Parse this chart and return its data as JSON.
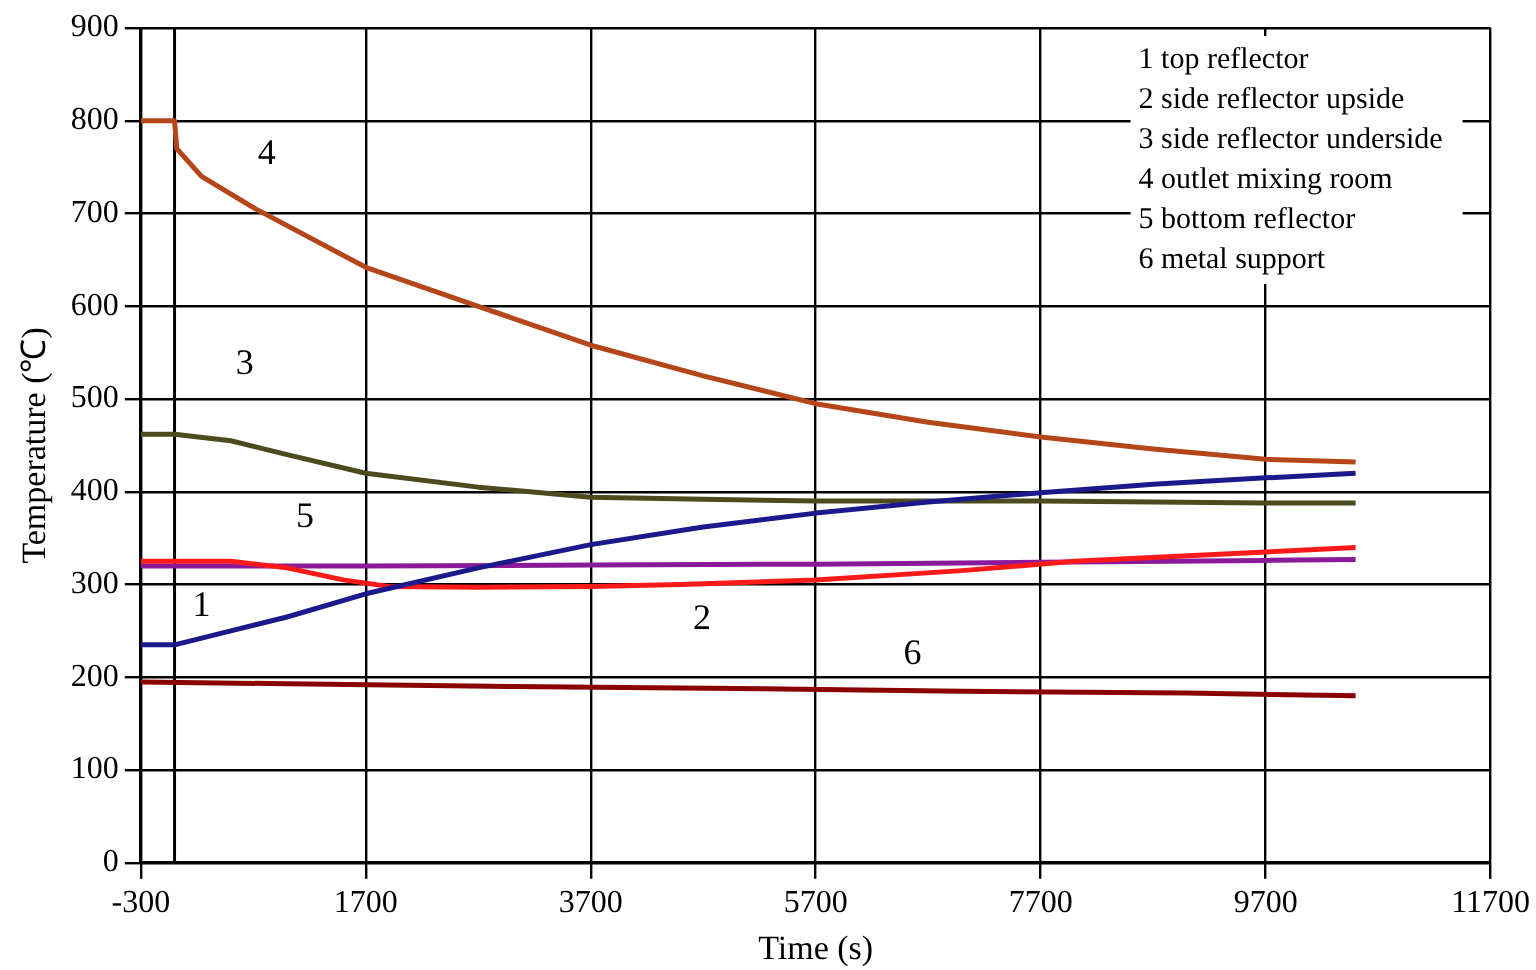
{
  "chart_data": {
    "type": "line",
    "xlabel": "Time (s)",
    "ylabel": "Temperature (℃)",
    "xlim": [
      -300,
      11700
    ],
    "xticks": [
      -300,
      1700,
      3700,
      5700,
      7700,
      9700,
      11700
    ],
    "ylim": [
      0,
      900
    ],
    "yticks": [
      0,
      100,
      200,
      300,
      400,
      500,
      600,
      700,
      800,
      900
    ],
    "grid": true,
    "marker": "none",
    "line_style": "solid",
    "series": [
      {
        "name": "1",
        "color": "#1a1a8c",
        "x": [
          -300,
          0,
          500,
          1000,
          1700,
          2700,
          3700,
          4700,
          5700,
          6700,
          7700,
          8700,
          9700,
          10500
        ],
        "values": [
          235,
          235,
          250,
          265,
          290,
          318,
          343,
          362,
          377,
          389,
          399,
          408,
          415,
          420
        ]
      },
      {
        "name": "2",
        "color": "#ff1a1a",
        "x": [
          -300,
          500,
          1000,
          1500,
          1900,
          2700,
          3700,
          4500,
          5700,
          7000,
          8000,
          9700,
          10500
        ],
        "values": [
          325,
          325,
          318,
          305,
          298,
          297,
          298,
          300,
          305,
          315,
          325,
          335,
          340
        ]
      },
      {
        "name": "3",
        "color": "#4b4b1e",
        "x": [
          -300,
          0,
          500,
          1000,
          1700,
          2700,
          3700,
          4700,
          5700,
          7700,
          9700,
          10500
        ],
        "values": [
          462,
          462,
          455,
          440,
          420,
          405,
          394,
          392,
          390,
          390,
          388,
          388
        ]
      },
      {
        "name": "4",
        "color": "#b5461a",
        "x": [
          -300,
          0,
          20,
          240,
          720,
          1700,
          2700,
          3700,
          4700,
          5700,
          6700,
          7700,
          8700,
          9700,
          10500
        ],
        "values": [
          800,
          800,
          770,
          740,
          705,
          642,
          600,
          558,
          525,
          495,
          475,
          459,
          446,
          435,
          432
        ]
      },
      {
        "name": "5",
        "color": "#8a1a9a",
        "x": [
          -300,
          1700,
          3700,
          5700,
          7700,
          9700,
          10500
        ],
        "values": [
          320,
          320,
          321,
          322,
          324,
          326,
          327
        ]
      },
      {
        "name": "6",
        "color": "#8b0000",
        "x": [
          -300,
          1000,
          3000,
          5000,
          7000,
          9000,
          10500
        ],
        "values": [
          195,
          193,
          190,
          188,
          185,
          183,
          180
        ]
      }
    ],
    "ref_lines": [
      {
        "axis": "x",
        "value": 0,
        "color": "#000000"
      }
    ],
    "annotations": [
      "1 top reflector",
      "2 side reflector upside",
      "3 side reflector underside",
      "4 outlet mixing room",
      "5 bottom reflector",
      "6 metal support"
    ]
  }
}
